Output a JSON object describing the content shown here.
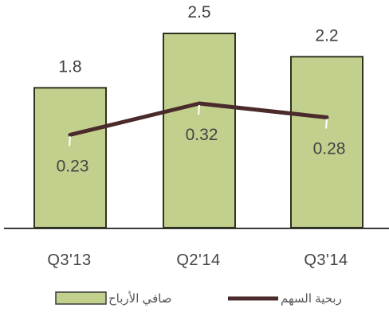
{
  "chart_data": {
    "type": "bar",
    "categories": [
      "Q3'13",
      "Q2'14",
      "Q3'14"
    ],
    "series": [
      {
        "name": "صافي الأرباح",
        "kind": "bar",
        "values": [
          1.8,
          2.5,
          2.2
        ],
        "color": "#c2d08e",
        "stroke": "#2e3320"
      },
      {
        "name": "ربحية السهم",
        "kind": "line",
        "values": [
          0.23,
          0.32,
          0.28
        ],
        "color": "#4a2a2a"
      }
    ],
    "bar_labels": [
      "1.8",
      "2.5",
      "2.2"
    ],
    "line_labels": [
      "0.23",
      "0.32",
      "0.28"
    ],
    "title": "",
    "xlabel": "",
    "ylabel": "",
    "ylim": [
      0,
      2.5
    ],
    "line_ylim": [
      0,
      0.4
    ],
    "grid": false,
    "legend_position": "bottom"
  }
}
